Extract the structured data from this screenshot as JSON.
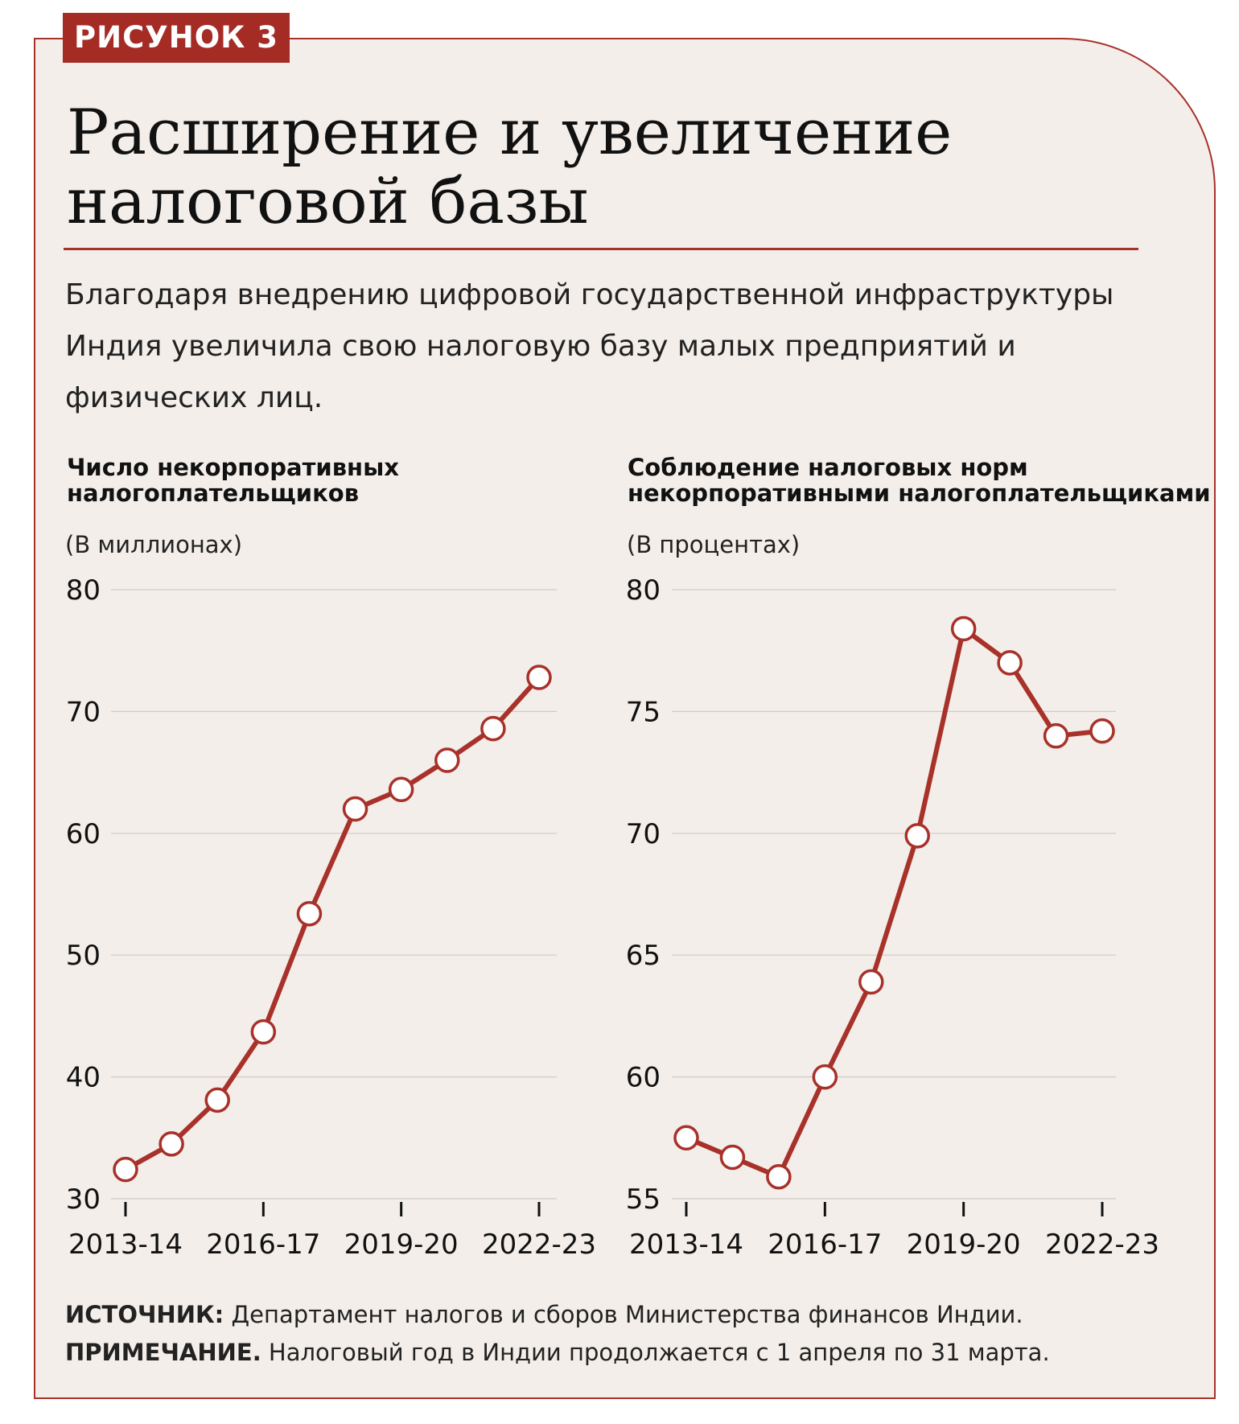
{
  "badge": "РИСУНОК 3",
  "title": [
    "Расширение и увеличение",
    "налоговой базы"
  ],
  "subtitle": "Благодаря внедрению цифровой государственной инфраструктуры Индия увеличила свою налоговую базу малых предприятий и физических лиц.",
  "colors": {
    "accent": "#a8312a",
    "background": "#f3eeea",
    "grid": "#cfcac6"
  },
  "chart_data": [
    {
      "type": "line",
      "title": "Число некорпоративных налогоплательщиков",
      "ylabel": "(В миллионах)",
      "x": [
        "2013-14",
        "2014-15",
        "2015-16",
        "2016-17",
        "2017-18",
        "2018-19",
        "2019-20",
        "2020-21",
        "2021-22",
        "2022-23"
      ],
      "x_tick_labels": [
        "2013-14",
        "2016-17",
        "2019-20",
        "2022-23"
      ],
      "values": [
        32.4,
        34.5,
        38.1,
        43.7,
        53.4,
        62.0,
        63.6,
        66.0,
        68.6,
        72.8
      ],
      "ylim": [
        30,
        80
      ],
      "yticks": [
        30,
        40,
        50,
        60,
        70,
        80
      ],
      "grid": true
    },
    {
      "type": "line",
      "title": "Соблюдение налоговых норм некорпоративными налогоплательщиками",
      "ylabel": "(В процентах)",
      "x": [
        "2013-14",
        "2014-15",
        "2015-16",
        "2016-17",
        "2017-18",
        "2018-19",
        "2019-20",
        "2020-21",
        "2021-22",
        "2022-23"
      ],
      "x_tick_labels": [
        "2013-14",
        "2016-17",
        "2019-20",
        "2022-23"
      ],
      "values": [
        57.5,
        56.7,
        55.9,
        60.0,
        63.9,
        69.9,
        78.4,
        77.0,
        74.0,
        74.2
      ],
      "ylim": [
        55,
        80
      ],
      "yticks": [
        55,
        60,
        65,
        70,
        75,
        80
      ],
      "grid": true
    }
  ],
  "chart_titles": [
    [
      "Число некорпоративных",
      "налогоплательщиков"
    ],
    [
      "Соблюдение налоговых норм",
      "некорпоративными налогоплательщиками"
    ]
  ],
  "footer": {
    "source_label": "ИСТОЧНИК:",
    "source_text": " Департамент налогов и сборов Министерства финансов Индии.",
    "note_label": "ПРИМЕЧАНИЕ.",
    "note_text": " Налоговый год в Индии продолжается с 1 апреля по 31 марта."
  }
}
